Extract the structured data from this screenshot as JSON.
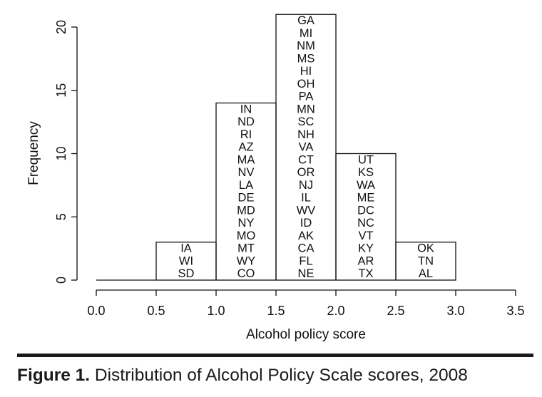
{
  "chart_data": {
    "type": "bar",
    "xlabel": "Alcohol policy score",
    "ylabel": "Frequency",
    "xlim": [
      0.0,
      3.5
    ],
    "ylim": [
      0,
      20
    ],
    "x_ticks": [
      "0.0",
      "0.5",
      "1.0",
      "1.5",
      "2.0",
      "2.5",
      "3.0",
      "3.5"
    ],
    "y_ticks": [
      "0",
      "5",
      "10",
      "15",
      "20"
    ],
    "grid": false,
    "bins": [
      {
        "from": 0.0,
        "to": 0.5,
        "count": 0,
        "labels": []
      },
      {
        "from": 0.5,
        "to": 1.0,
        "count": 3,
        "labels": [
          "IA",
          "WI",
          "SD"
        ]
      },
      {
        "from": 1.0,
        "to": 1.5,
        "count": 14,
        "labels": [
          "IN",
          "ND",
          "RI",
          "AZ",
          "MA",
          "NV",
          "LA",
          "DE",
          "MD",
          "NY",
          "MO",
          "MT",
          "WY",
          "CO"
        ]
      },
      {
        "from": 1.5,
        "to": 2.0,
        "count": 21,
        "labels": [
          "GA",
          "MI",
          "NM",
          "MS",
          "HI",
          "OH",
          "PA",
          "MN",
          "SC",
          "NH",
          "VA",
          "CT",
          "OR",
          "NJ",
          "IL",
          "WV",
          "ID",
          "AK",
          "CA",
          "FL",
          "NE"
        ]
      },
      {
        "from": 2.0,
        "to": 2.5,
        "count": 10,
        "labels": [
          "UT",
          "KS",
          "WA",
          "ME",
          "DC",
          "NC",
          "VT",
          "KY",
          "AR",
          "TX"
        ]
      },
      {
        "from": 2.5,
        "to": 3.0,
        "count": 3,
        "labels": [
          "OK",
          "TN",
          "AL"
        ]
      }
    ]
  },
  "caption": {
    "label": "Figure 1.",
    "text": "Distribution of Alcohol Policy Scale scores, 2008"
  }
}
